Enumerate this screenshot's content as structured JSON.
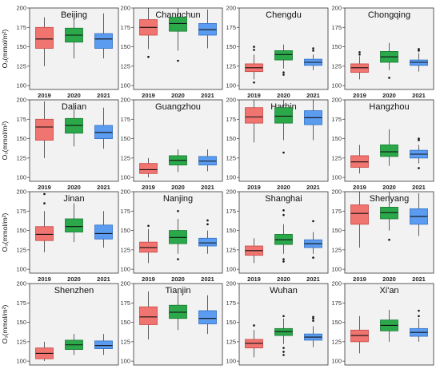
{
  "chart_data": [
    {
      "type": "box",
      "title": "Beijing",
      "ylabel": "O₃(mmol/m²)",
      "ylim": [
        95,
        200
      ],
      "yticks": [
        100,
        125,
        150,
        175,
        200
      ],
      "categories": [
        "2019",
        "2020",
        "2021"
      ],
      "boxes": [
        {
          "min": 125,
          "q1": 148,
          "median": 160,
          "q3": 175,
          "max": 188,
          "outliers": []
        },
        {
          "min": 135,
          "q1": 156,
          "median": 165,
          "q3": 174,
          "max": 185,
          "outliers": []
        },
        {
          "min": 135,
          "q1": 148,
          "median": 160,
          "q3": 167,
          "max": 193,
          "outliers": []
        }
      ]
    },
    {
      "type": "box",
      "title": "Changchun",
      "ylabel": "",
      "ylim": [
        95,
        200
      ],
      "yticks": [
        100,
        125,
        150,
        175,
        200
      ],
      "categories": [
        "2019",
        "2020",
        "2021"
      ],
      "boxes": [
        {
          "min": 147,
          "q1": 165,
          "median": 175,
          "q3": 185,
          "max": 200,
          "outliers": [
            137
          ]
        },
        {
          "min": 145,
          "q1": 170,
          "median": 180,
          "q3": 188,
          "max": 200,
          "outliers": [
            132
          ]
        },
        {
          "min": 148,
          "q1": 165,
          "median": 172,
          "q3": 180,
          "max": 198,
          "outliers": []
        }
      ]
    },
    {
      "type": "box",
      "title": "Chengdu",
      "ylabel": "",
      "ylim": [
        95,
        200
      ],
      "yticks": [
        100,
        125,
        150,
        175,
        200
      ],
      "categories": [
        "2019",
        "2020",
        "2021"
      ],
      "boxes": [
        {
          "min": 108,
          "q1": 118,
          "median": 123,
          "q3": 128,
          "max": 140,
          "outliers": [
            146,
            150,
            104
          ]
        },
        {
          "min": 122,
          "q1": 133,
          "median": 140,
          "q3": 145,
          "max": 153,
          "outliers": [
            117,
            114
          ]
        },
        {
          "min": 120,
          "q1": 126,
          "median": 130,
          "q3": 134,
          "max": 140,
          "outliers": [
            145,
            148
          ]
        }
      ]
    },
    {
      "type": "box",
      "title": "Chongqing",
      "ylabel": "",
      "ylim": [
        95,
        200
      ],
      "yticks": [
        100,
        125,
        150,
        175,
        200
      ],
      "categories": [
        "2019",
        "2020",
        "2021"
      ],
      "boxes": [
        {
          "min": 108,
          "q1": 117,
          "median": 123,
          "q3": 128,
          "max": 138,
          "outliers": [
            143,
            140
          ]
        },
        {
          "min": 120,
          "q1": 130,
          "median": 137,
          "q3": 144,
          "max": 155,
          "outliers": [
            110
          ]
        },
        {
          "min": 118,
          "q1": 126,
          "median": 130,
          "q3": 133,
          "max": 142,
          "outliers": [
            147,
            145
          ]
        }
      ]
    },
    {
      "type": "box",
      "title": "Dalian",
      "ylabel": "O₃(mmol/m²)",
      "ylim": [
        95,
        200
      ],
      "yticks": [
        100,
        125,
        150,
        175,
        200
      ],
      "categories": [
        "2019",
        "2020",
        "2021"
      ],
      "boxes": [
        {
          "min": 125,
          "q1": 148,
          "median": 165,
          "q3": 175,
          "max": 198,
          "outliers": []
        },
        {
          "min": 140,
          "q1": 157,
          "median": 167,
          "q3": 176,
          "max": 193,
          "outliers": []
        },
        {
          "min": 137,
          "q1": 150,
          "median": 158,
          "q3": 167,
          "max": 190,
          "outliers": []
        }
      ]
    },
    {
      "type": "box",
      "title": "Guangzhou",
      "ylabel": "",
      "ylim": [
        95,
        200
      ],
      "yticks": [
        100,
        125,
        150,
        175,
        200
      ],
      "categories": [
        "2019",
        "2020",
        "2021"
      ],
      "boxes": [
        {
          "min": 100,
          "q1": 105,
          "median": 110,
          "q3": 118,
          "max": 125,
          "outliers": []
        },
        {
          "min": 107,
          "q1": 116,
          "median": 122,
          "q3": 128,
          "max": 136,
          "outliers": []
        },
        {
          "min": 108,
          "q1": 116,
          "median": 121,
          "q3": 127,
          "max": 136,
          "outliers": []
        }
      ]
    },
    {
      "type": "box",
      "title": "Harbin",
      "ylabel": "",
      "ylim": [
        95,
        200
      ],
      "yticks": [
        100,
        125,
        150,
        175,
        200
      ],
      "categories": [
        "2019",
        "2020",
        "2021"
      ],
      "boxes": [
        {
          "min": 145,
          "q1": 170,
          "median": 178,
          "q3": 190,
          "max": 200,
          "outliers": []
        },
        {
          "min": 148,
          "q1": 170,
          "median": 179,
          "q3": 190,
          "max": 200,
          "outliers": [
            132
          ]
        },
        {
          "min": 148,
          "q1": 168,
          "median": 177,
          "q3": 186,
          "max": 200,
          "outliers": []
        }
      ]
    },
    {
      "type": "box",
      "title": "Hangzhou",
      "ylabel": "",
      "ylim": [
        95,
        200
      ],
      "yticks": [
        100,
        125,
        150,
        175,
        200
      ],
      "categories": [
        "2019",
        "2020",
        "2021"
      ],
      "boxes": [
        {
          "min": 105,
          "q1": 113,
          "median": 120,
          "q3": 128,
          "max": 142,
          "outliers": []
        },
        {
          "min": 115,
          "q1": 127,
          "median": 133,
          "q3": 142,
          "max": 162,
          "outliers": []
        },
        {
          "min": 118,
          "q1": 125,
          "median": 130,
          "q3": 135,
          "max": 142,
          "outliers": [
            148,
            150,
            112
          ]
        }
      ]
    },
    {
      "type": "box",
      "title": "Jinan",
      "ylabel": "O₃(mmol/m²)",
      "ylim": [
        95,
        200
      ],
      "yticks": [
        100,
        125,
        150,
        175,
        200
      ],
      "categories": [
        "2019",
        "2020",
        "2021"
      ],
      "boxes": [
        {
          "min": 122,
          "q1": 137,
          "median": 145,
          "q3": 155,
          "max": 175,
          "outliers": [
            197,
            185
          ]
        },
        {
          "min": 135,
          "q1": 148,
          "median": 155,
          "q3": 165,
          "max": 185,
          "outliers": []
        },
        {
          "min": 128,
          "q1": 139,
          "median": 146,
          "q3": 157,
          "max": 175,
          "outliers": []
        }
      ]
    },
    {
      "type": "box",
      "title": "Nanjing",
      "ylabel": "",
      "ylim": [
        95,
        200
      ],
      "yticks": [
        100,
        125,
        150,
        175,
        200
      ],
      "categories": [
        "2019",
        "2020",
        "2021"
      ],
      "boxes": [
        {
          "min": 108,
          "q1": 122,
          "median": 128,
          "q3": 135,
          "max": 152,
          "outliers": [
            156
          ]
        },
        {
          "min": 120,
          "q1": 133,
          "median": 141,
          "q3": 150,
          "max": 165,
          "outliers": [
            175,
            113
          ]
        },
        {
          "min": 120,
          "q1": 130,
          "median": 134,
          "q3": 140,
          "max": 150,
          "outliers": [
            163,
            158
          ]
        }
      ]
    },
    {
      "type": "box",
      "title": "Shanghai",
      "ylabel": "",
      "ylim": [
        95,
        200
      ],
      "yticks": [
        100,
        125,
        150,
        175,
        200
      ],
      "categories": [
        "2019",
        "2020",
        "2021"
      ],
      "boxes": [
        {
          "min": 108,
          "q1": 118,
          "median": 124,
          "q3": 130,
          "max": 140,
          "outliers": []
        },
        {
          "min": 120,
          "q1": 132,
          "median": 138,
          "q3": 145,
          "max": 158,
          "outliers": [
            176,
            170,
            113,
            110
          ]
        },
        {
          "min": 120,
          "q1": 128,
          "median": 133,
          "q3": 138,
          "max": 148,
          "outliers": [
            162,
            115
          ]
        }
      ]
    },
    {
      "type": "box",
      "title": "Shenyang",
      "ylabel": "",
      "ylim": [
        95,
        200
      ],
      "yticks": [
        100,
        125,
        150,
        175,
        200
      ],
      "categories": [
        "2019",
        "2020",
        "2021"
      ],
      "boxes": [
        {
          "min": 128,
          "q1": 158,
          "median": 172,
          "q3": 183,
          "max": 200,
          "outliers": []
        },
        {
          "min": 150,
          "q1": 165,
          "median": 173,
          "q3": 180,
          "max": 200,
          "outliers": [
            138
          ]
        },
        {
          "min": 143,
          "q1": 158,
          "median": 168,
          "q3": 178,
          "max": 198,
          "outliers": []
        }
      ]
    },
    {
      "type": "box",
      "title": "Shenzhen",
      "ylabel": "O₃(mmol/m²)",
      "ylim": [
        95,
        200
      ],
      "yticks": [
        100,
        125,
        150,
        175,
        200
      ],
      "categories": [
        "2019",
        "2020",
        "2021"
      ],
      "boxes": [
        {
          "min": 100,
          "q1": 103,
          "median": 110,
          "q3": 117,
          "max": 125,
          "outliers": []
        },
        {
          "min": 108,
          "q1": 115,
          "median": 121,
          "q3": 127,
          "max": 135,
          "outliers": []
        },
        {
          "min": 108,
          "q1": 116,
          "median": 120,
          "q3": 126,
          "max": 135,
          "outliers": []
        }
      ]
    },
    {
      "type": "box",
      "title": "Tianjin",
      "ylabel": "",
      "ylim": [
        95,
        200
      ],
      "yticks": [
        100,
        125,
        150,
        175,
        200
      ],
      "categories": [
        "2019",
        "2020",
        "2021"
      ],
      "boxes": [
        {
          "min": 128,
          "q1": 147,
          "median": 157,
          "q3": 170,
          "max": 190,
          "outliers": []
        },
        {
          "min": 140,
          "q1": 155,
          "median": 163,
          "q3": 172,
          "max": 190,
          "outliers": []
        },
        {
          "min": 135,
          "q1": 148,
          "median": 155,
          "q3": 165,
          "max": 185,
          "outliers": []
        }
      ]
    },
    {
      "type": "box",
      "title": "Wuhan",
      "ylabel": "",
      "ylim": [
        95,
        200
      ],
      "yticks": [
        100,
        125,
        150,
        175,
        200
      ],
      "categories": [
        "2019",
        "2020",
        "2021"
      ],
      "boxes": [
        {
          "min": 105,
          "q1": 117,
          "median": 123,
          "q3": 128,
          "max": 140,
          "outliers": [
            146
          ]
        },
        {
          "min": 122,
          "q1": 133,
          "median": 138,
          "q3": 142,
          "max": 155,
          "outliers": [
            158,
            117,
            112,
            108
          ]
        },
        {
          "min": 118,
          "q1": 127,
          "median": 131,
          "q3": 135,
          "max": 145,
          "outliers": [
            152,
            155,
            157
          ]
        }
      ]
    },
    {
      "type": "box",
      "title": "Xi'an",
      "ylabel": "",
      "ylim": [
        95,
        200
      ],
      "yticks": [
        100,
        125,
        150,
        175,
        200
      ],
      "categories": [
        "2019",
        "2020",
        "2021"
      ],
      "boxes": [
        {
          "min": 110,
          "q1": 125,
          "median": 133,
          "q3": 140,
          "max": 158,
          "outliers": []
        },
        {
          "min": 125,
          "q1": 139,
          "median": 146,
          "q3": 153,
          "max": 166,
          "outliers": []
        },
        {
          "min": 125,
          "q1": 132,
          "median": 137,
          "q3": 142,
          "max": 155,
          "outliers": [
            165,
            158
          ]
        }
      ]
    }
  ],
  "series_colors": {
    "2019": "#f07470",
    "2020": "#2aa84a",
    "2021": "#5b9bf0"
  }
}
